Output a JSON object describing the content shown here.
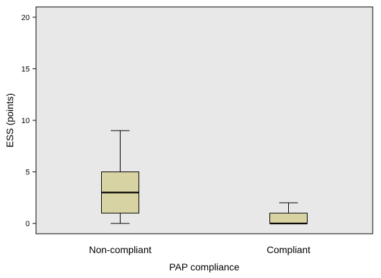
{
  "chart_data": {
    "type": "boxplot",
    "xlabel": "PAP compliance",
    "ylabel": "ESS (points)",
    "ylim": [
      -1,
      21
    ],
    "yticks": [
      0,
      5,
      10,
      15,
      20
    ],
    "ytick_labels": [
      "0",
      "5",
      "10",
      "15",
      "20"
    ],
    "categories": [
      "Non-compliant",
      "Compliant"
    ],
    "boxes": [
      {
        "category": "Non-compliant",
        "whisker_low": 0,
        "q1": 1,
        "median": 3,
        "q3": 5,
        "whisker_high": 9
      },
      {
        "category": "Compliant",
        "whisker_low": 0,
        "q1": 0,
        "median": 0,
        "q3": 1,
        "whisker_high": 2
      }
    ],
    "grid": false,
    "colors": {
      "plot_background": "#e8e8e8",
      "box_fill": "#d8d3a2",
      "stroke": "#000000"
    }
  }
}
